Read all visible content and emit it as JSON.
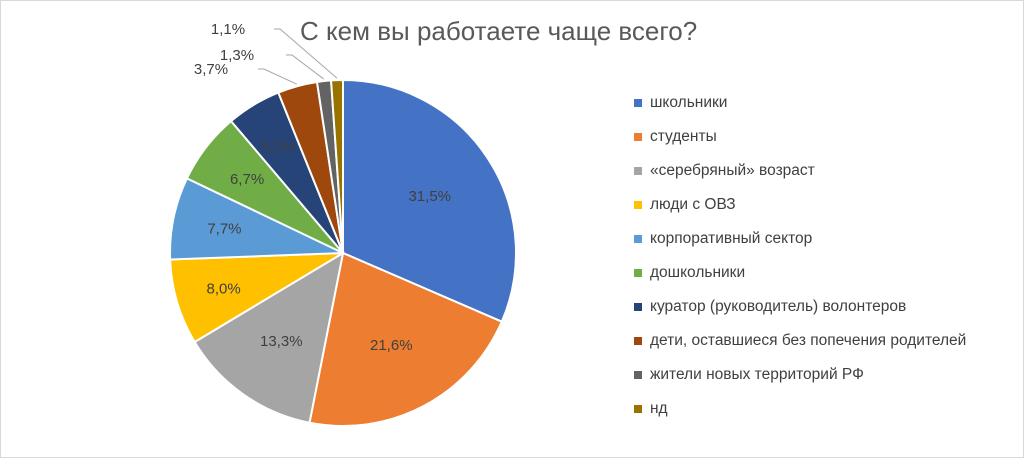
{
  "chart_data": {
    "type": "pie",
    "title": "С кем вы работаете чаще всего?",
    "legend_position": "right",
    "slices": [
      {
        "name": "школьники",
        "value": 31.5,
        "label": "31,5%",
        "color": "#4472c4"
      },
      {
        "name": "студенты",
        "value": 21.6,
        "label": "21,6%",
        "color": "#ed7d31"
      },
      {
        "name": "«серебряный» возраст",
        "value": 13.3,
        "label": "13,3%",
        "color": "#a5a5a5"
      },
      {
        "name": "люди с ОВЗ",
        "value": 8.0,
        "label": "8,0%",
        "color": "#ffc000"
      },
      {
        "name": "корпоративный сектор",
        "value": 7.7,
        "label": "7,7%",
        "color": "#5b9bd5"
      },
      {
        "name": "дошкольники",
        "value": 6.7,
        "label": "6,7%",
        "color": "#70ad47"
      },
      {
        "name": "куратор (руководитель) волонтеров",
        "value": 5.1,
        "label": "5,1%",
        "color": "#264478"
      },
      {
        "name": "дети, оставшиеся без попечения родителей",
        "value": 3.7,
        "label": "3,7%",
        "color": "#9e480e"
      },
      {
        "name": "жители новых территорий РФ",
        "value": 1.3,
        "label": "1,3%",
        "color": "#636363"
      },
      {
        "name": "нд",
        "value": 1.1,
        "label": "1,1%",
        "color": "#997300"
      }
    ]
  }
}
